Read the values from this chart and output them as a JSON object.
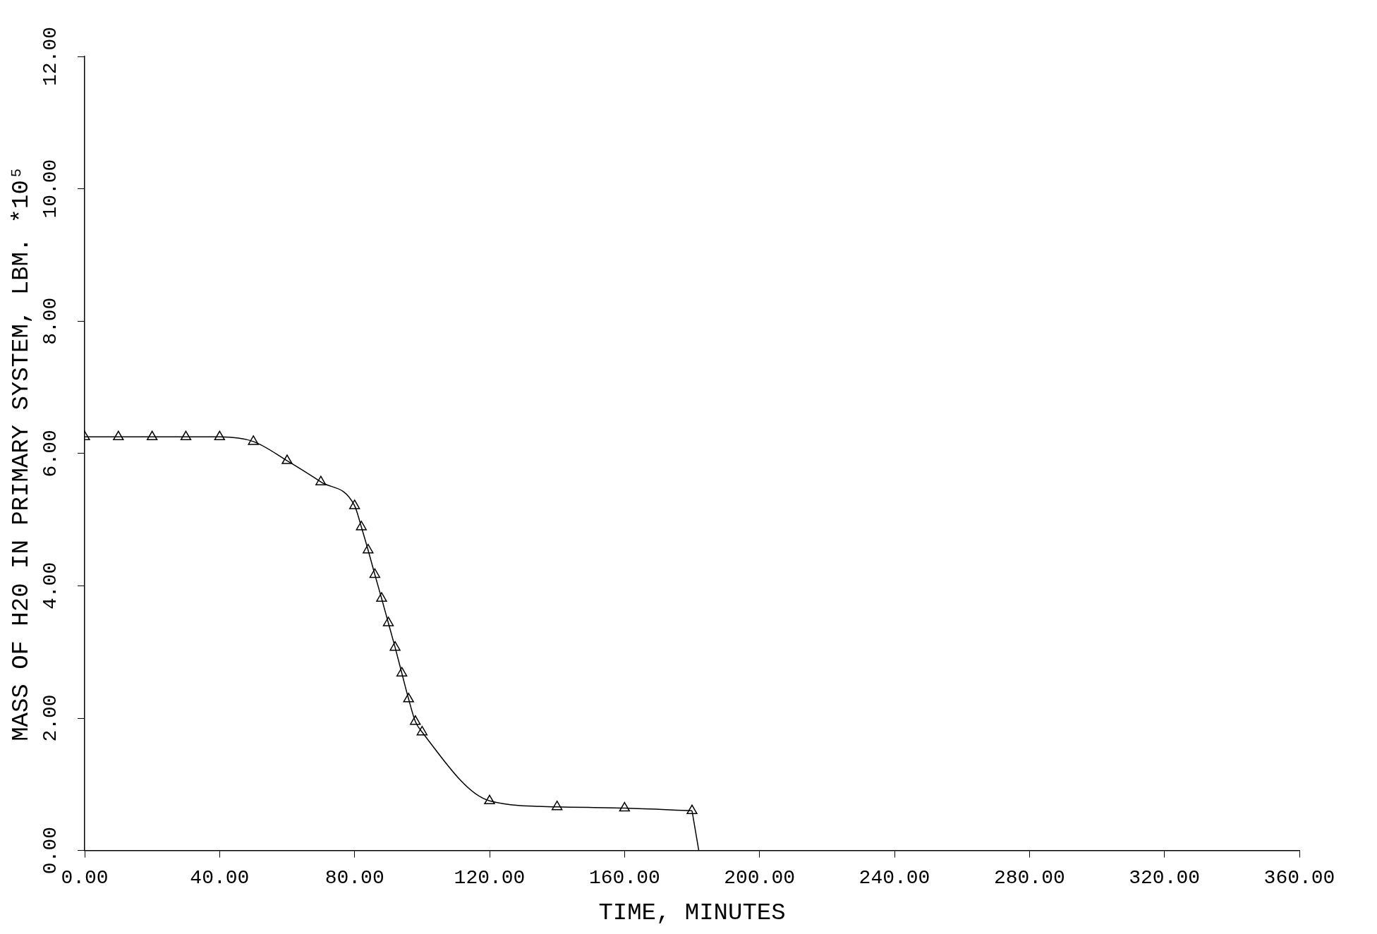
{
  "chart_data": {
    "type": "line",
    "xlabel": "TIME, MINUTES",
    "ylabel": "MASS OF H20 IN PRIMARY SYSTEM, LBM. *10⁵",
    "series": [
      {
        "color": "#000000",
        "marker": "triangle",
        "x": [
          0,
          10,
          20,
          30,
          40,
          50,
          60,
          70,
          80,
          82,
          84,
          86,
          88,
          90,
          92,
          94,
          96,
          98,
          100,
          120,
          140,
          160,
          180
        ],
        "values": [
          6.25,
          6.25,
          6.25,
          6.25,
          6.25,
          6.18,
          5.89,
          5.57,
          5.21,
          4.89,
          4.54,
          4.17,
          3.81,
          3.44,
          3.07,
          2.68,
          2.29,
          1.95,
          1.79,
          0.75,
          0.66,
          0.64,
          0.6
        ]
      },
      {
        "color": "#000000",
        "marker": "none",
        "x": [
          180,
          182
        ],
        "values": [
          0.6,
          0
        ]
      }
    ],
    "xlim": [
      0,
      360
    ],
    "xticks": [
      {
        "value": 0,
        "label": "0.00"
      },
      {
        "value": 40,
        "label": "40.00"
      },
      {
        "value": 80,
        "label": "80.00"
      },
      {
        "value": 120,
        "label": "120.00"
      },
      {
        "value": 160,
        "label": "160.00"
      },
      {
        "value": 200,
        "label": "200.00"
      },
      {
        "value": 240,
        "label": "240.00"
      },
      {
        "value": 280,
        "label": "280.00"
      },
      {
        "value": 320,
        "label": "320.00"
      },
      {
        "value": 360,
        "label": "360.00"
      }
    ],
    "ylim": [
      0,
      12
    ],
    "yticks": [
      {
        "value": 0,
        "label": "0.00"
      },
      {
        "value": 2,
        "label": "2.00"
      },
      {
        "value": 4,
        "label": "4.00"
      },
      {
        "value": 6,
        "label": "6.00"
      },
      {
        "value": 8,
        "label": "8.00"
      },
      {
        "value": 10,
        "label": "10.00"
      },
      {
        "value": 12,
        "label": "12.00"
      }
    ],
    "grid": false,
    "legend": false,
    "line_style": "solid"
  }
}
